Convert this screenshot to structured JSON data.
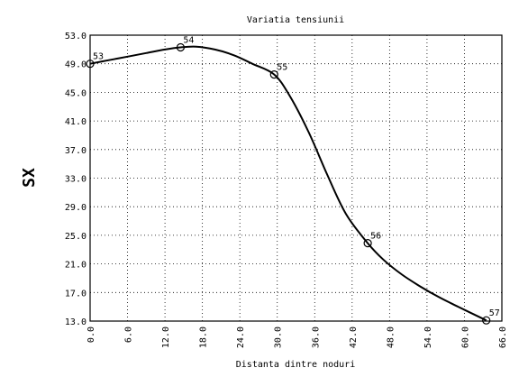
{
  "chart_data": {
    "type": "line",
    "title": "Variatia tensiunii",
    "xlabel": "Distanta dintre noduri",
    "ylabel": "SX",
    "xlim": [
      0,
      66
    ],
    "ylim": [
      13,
      53
    ],
    "xticks": [
      0,
      6,
      12,
      18,
      24,
      30,
      36,
      42,
      48,
      54,
      60,
      66
    ],
    "xtick_labels": [
      "0.0",
      "6.0",
      "12.0",
      "18.0",
      "24.0",
      "30.0",
      "36.0",
      "42.0",
      "48.0",
      "54.0",
      "60.0",
      "66.0"
    ],
    "yticks": [
      13,
      17,
      21,
      25,
      29,
      33,
      37,
      41,
      45,
      49,
      53
    ],
    "ytick_labels": [
      "13.0",
      "17.0",
      "21.0",
      "25.0",
      "29.0",
      "33.0",
      "37.0",
      "41.0",
      "45.0",
      "49.0",
      "53.0"
    ],
    "grid": true,
    "nodes": [
      {
        "label": "53",
        "x": 0.0,
        "y": 49.0
      },
      {
        "label": "54",
        "x": 14.5,
        "y": 51.3
      },
      {
        "label": "55",
        "x": 29.5,
        "y": 47.5
      },
      {
        "label": "56",
        "x": 44.5,
        "y": 23.9
      },
      {
        "label": "57",
        "x": 63.5,
        "y": 13.1
      }
    ],
    "curve": {
      "x": [
        0,
        3,
        6,
        9,
        12,
        14.5,
        17,
        20,
        23,
        26,
        29.5,
        32,
        35,
        38,
        41,
        44.5,
        47,
        50,
        53,
        56,
        59,
        63.5
      ],
      "y": [
        49.0,
        49.5,
        50.0,
        50.5,
        51.0,
        51.3,
        51.4,
        51.0,
        50.2,
        49.0,
        47.5,
        44.5,
        39.5,
        33.5,
        28.0,
        23.9,
        21.6,
        19.5,
        17.8,
        16.3,
        15.0,
        13.1
      ]
    }
  }
}
